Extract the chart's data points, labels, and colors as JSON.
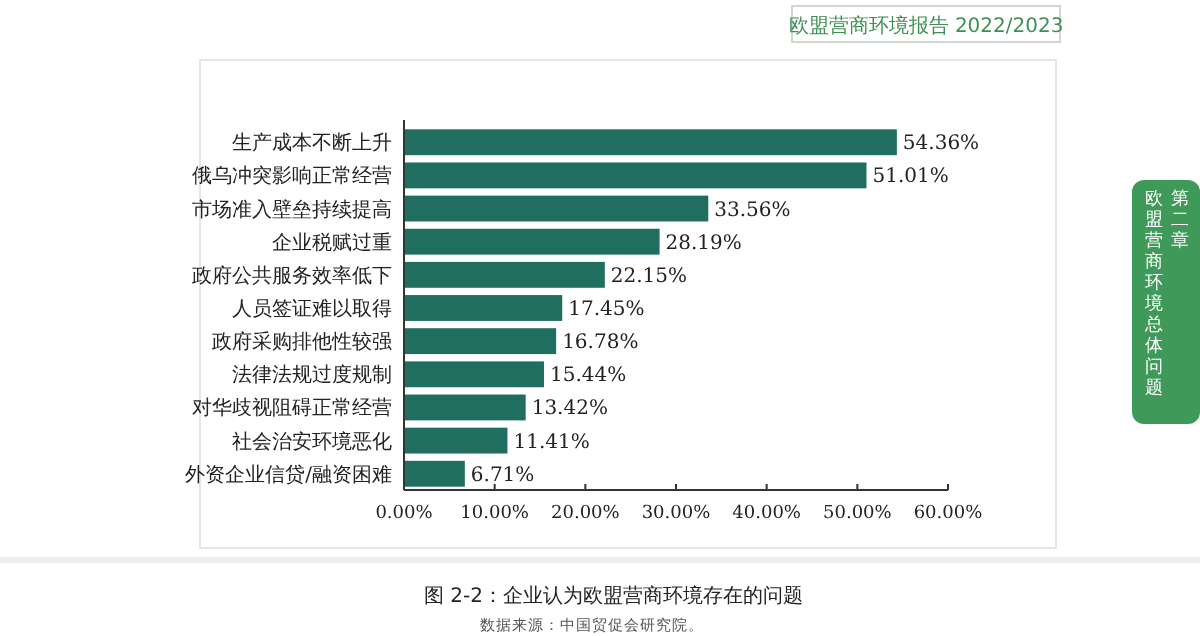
{
  "chart_data": {
    "type": "bar",
    "orientation": "horizontal",
    "title": "图 2-2：企业认为欧盟营商环境存在的问题",
    "categories": [
      "生产成本不断上升",
      "俄乌冲突影响正常经营",
      "市场准入壁垒持续提高",
      "企业税赋过重",
      "政府公共服务效率低下",
      "人员签证难以取得",
      "政府采购排他性较强",
      "法律法规过度规制",
      "对华歧视阻碍正常经营",
      "社会治安环境恶化",
      "外资企业信贷/融资困难"
    ],
    "values": [
      54.36,
      51.01,
      33.56,
      28.19,
      22.15,
      17.45,
      16.78,
      15.44,
      13.42,
      11.41,
      6.71
    ],
    "value_labels": [
      "54.36%",
      "51.01%",
      "33.56%",
      "28.19%",
      "22.15%",
      "17.45%",
      "16.78%",
      "15.44%",
      "13.42%",
      "11.41%",
      "6.71%"
    ],
    "color": "#1f6e5f",
    "xlim": [
      0,
      60
    ],
    "xticks": [
      {
        "value": 0,
        "label": "0.00%"
      },
      {
        "value": 10,
        "label": "10.00%"
      },
      {
        "value": 20,
        "label": "20.00%"
      },
      {
        "value": 30,
        "label": "30.00%"
      },
      {
        "value": 40,
        "label": "40.00%"
      },
      {
        "value": 50,
        "label": "50.00%"
      },
      {
        "value": 60,
        "label": "60.00%"
      }
    ],
    "grid": false,
    "annotations": [
      "数据来源：中国贸促会研究院。",
      "欧盟营商环境报告 2022/2023",
      "第二章",
      "欧盟营商环境总体问题"
    ]
  }
}
